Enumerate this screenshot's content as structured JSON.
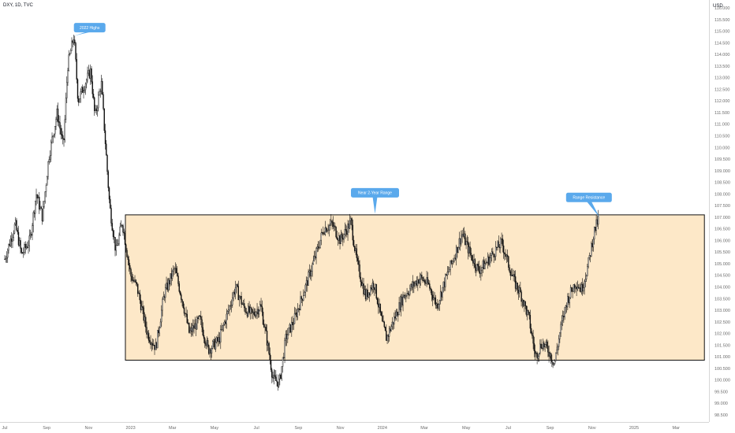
{
  "header": {
    "symbol": "DXY, 1D, TVC",
    "currency": "USD"
  },
  "colors": {
    "range_fill": "#fde8c8",
    "range_stroke": "#111111",
    "candle": "#111111",
    "callout": "#5aa9ec",
    "axis_text": "#6b6b6b"
  },
  "chart_data": {
    "type": "candlestick",
    "title": "",
    "xlabel": "",
    "ylabel": "",
    "ylim": [
      98.5,
      116.0
    ],
    "y_ticks": [
      "116.000",
      "115.500",
      "115.000",
      "114.500",
      "114.000",
      "113.500",
      "113.000",
      "112.500",
      "112.000",
      "111.500",
      "111.000",
      "110.500",
      "110.000",
      "109.500",
      "109.000",
      "108.500",
      "108.000",
      "107.500",
      "107.000",
      "106.500",
      "106.000",
      "105.500",
      "105.000",
      "104.500",
      "104.000",
      "103.500",
      "103.000",
      "102.500",
      "102.000",
      "101.500",
      "101.000",
      "100.500",
      "100.000",
      "99.500",
      "99.000",
      "98.500"
    ],
    "x_ticks": [
      {
        "label": "Jul",
        "month_index": 0
      },
      {
        "label": "Sep",
        "month_index": 2
      },
      {
        "label": "Nov",
        "month_index": 4
      },
      {
        "label": "2023",
        "month_index": 6
      },
      {
        "label": "Mar",
        "month_index": 8
      },
      {
        "label": "May",
        "month_index": 10
      },
      {
        "label": "Jul",
        "month_index": 12
      },
      {
        "label": "Sep",
        "month_index": 14
      },
      {
        "label": "Nov",
        "month_index": 16
      },
      {
        "label": "2024",
        "month_index": 18
      },
      {
        "label": "Mar",
        "month_index": 20
      },
      {
        "label": "May",
        "month_index": 22
      },
      {
        "label": "Jul",
        "month_index": 24
      },
      {
        "label": "Sep",
        "month_index": 26
      },
      {
        "label": "Nov",
        "month_index": 28
      },
      {
        "label": "2025",
        "month_index": 30
      },
      {
        "label": "Mar",
        "month_index": 32
      }
    ],
    "x_range_months": [
      0,
      33.4
    ],
    "price_path": [
      [
        0.0,
        105.2
      ],
      [
        0.5,
        106.7
      ],
      [
        0.8,
        105.4
      ],
      [
        1.2,
        106.0
      ],
      [
        1.5,
        108.0
      ],
      [
        1.8,
        107.0
      ],
      [
        2.1,
        109.6
      ],
      [
        2.5,
        111.5
      ],
      [
        2.8,
        110.0
      ],
      [
        3.0,
        113.5
      ],
      [
        3.3,
        114.8
      ],
      [
        3.5,
        112.0
      ],
      [
        3.8,
        112.7
      ],
      [
        4.1,
        113.3
      ],
      [
        4.3,
        111.3
      ],
      [
        4.6,
        112.8
      ],
      [
        5.0,
        107.5
      ],
      [
        5.3,
        105.5
      ],
      [
        5.6,
        106.8
      ],
      [
        6.0,
        104.5
      ],
      [
        6.3,
        104.0
      ],
      [
        6.8,
        102.0
      ],
      [
        7.2,
        101.4
      ],
      [
        7.6,
        103.7
      ],
      [
        8.1,
        104.8
      ],
      [
        8.5,
        103.3
      ],
      [
        8.8,
        102.0
      ],
      [
        9.3,
        102.6
      ],
      [
        9.7,
        101.3
      ],
      [
        10.2,
        101.7
      ],
      [
        10.6,
        102.8
      ],
      [
        11.0,
        104.0
      ],
      [
        11.4,
        103.1
      ],
      [
        11.8,
        102.8
      ],
      [
        12.2,
        103.2
      ],
      [
        12.5,
        101.7
      ],
      [
        12.8,
        100.0
      ],
      [
        13.1,
        99.9
      ],
      [
        13.4,
        101.8
      ],
      [
        13.8,
        102.6
      ],
      [
        14.3,
        103.9
      ],
      [
        14.8,
        105.3
      ],
      [
        15.2,
        106.5
      ],
      [
        15.6,
        106.7
      ],
      [
        16.0,
        106.0
      ],
      [
        16.5,
        106.8
      ],
      [
        16.8,
        105.0
      ],
      [
        17.2,
        103.6
      ],
      [
        17.6,
        104.2
      ],
      [
        18.0,
        102.4
      ],
      [
        18.2,
        101.8
      ],
      [
        18.6,
        102.7
      ],
      [
        19.0,
        103.6
      ],
      [
        19.4,
        104.0
      ],
      [
        19.8,
        104.4
      ],
      [
        20.2,
        104.1
      ],
      [
        20.6,
        103.2
      ],
      [
        21.0,
        104.3
      ],
      [
        21.5,
        105.5
      ],
      [
        21.8,
        106.3
      ],
      [
        22.2,
        105.4
      ],
      [
        22.6,
        104.7
      ],
      [
        23.0,
        105.1
      ],
      [
        23.4,
        105.6
      ],
      [
        23.7,
        105.9
      ],
      [
        24.0,
        105.0
      ],
      [
        24.3,
        104.2
      ],
      [
        24.6,
        103.7
      ],
      [
        25.0,
        102.6
      ],
      [
        25.3,
        101.0
      ],
      [
        25.6,
        101.6
      ],
      [
        25.9,
        101.3
      ],
      [
        26.2,
        100.7
      ],
      [
        26.5,
        102.2
      ],
      [
        26.8,
        103.4
      ],
      [
        27.2,
        104.2
      ],
      [
        27.5,
        103.9
      ],
      [
        27.8,
        104.9
      ],
      [
        28.1,
        106.4
      ],
      [
        28.3,
        106.9
      ]
    ],
    "series": [
      {
        "type": "range_box",
        "x_start_month": 5.75,
        "x_end_month": 33.35,
        "y_low": 100.85,
        "y_high": 107.1
      }
    ],
    "annotations": [
      {
        "text": "2022 Highs",
        "x_month": 4.05,
        "y": 115.15,
        "pointer_x_month": 3.3,
        "pointer_y": 114.8
      },
      {
        "text": "Near 2-Year Range",
        "x_month": 17.65,
        "y": 108.05,
        "pointer_x_month": 17.65,
        "pointer_y": 107.15
      },
      {
        "text": "Range Resistance",
        "x_month": 27.85,
        "y": 107.85,
        "pointer_x_month": 28.35,
        "pointer_y": 107.0
      }
    ]
  }
}
